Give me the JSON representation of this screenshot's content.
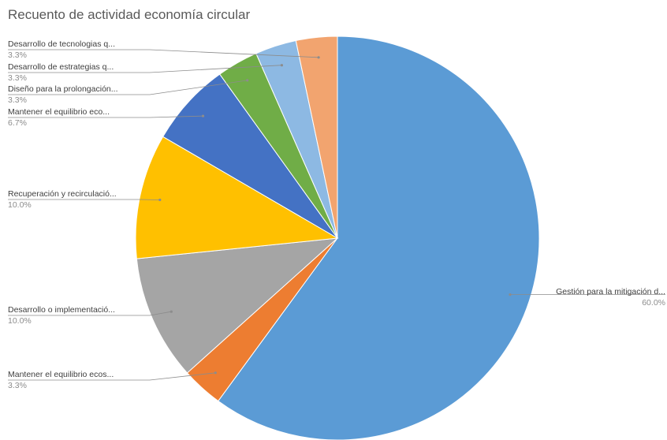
{
  "chart_data": {
    "type": "pie",
    "title": "Recuento de actividad economía circular",
    "slices": [
      {
        "label": "Gestión para la mitigación d...",
        "value": 60.0,
        "pct_label": "60.0%",
        "color": "#5b9bd5"
      },
      {
        "label": "Mantener el equilibrio ecos...",
        "value": 3.3,
        "pct_label": "3.3%",
        "color": "#ed7d31"
      },
      {
        "label": "Desarrollo o implementació...",
        "value": 10.0,
        "pct_label": "10.0%",
        "color": "#a5a5a5"
      },
      {
        "label": "Recuperación y recirculació...",
        "value": 10.0,
        "pct_label": "10.0%",
        "color": "#ffc000"
      },
      {
        "label": "Mantener el equilibrio eco...",
        "value": 6.7,
        "pct_label": "6.7%",
        "color": "#4472c4"
      },
      {
        "label": "Diseño para la prolongación...",
        "value": 3.3,
        "pct_label": "3.3%",
        "color": "#70ad47"
      },
      {
        "label": "Desarrollo de estrategias q...",
        "value": 3.3,
        "pct_label": "3.3%",
        "color": "#8db9e3"
      },
      {
        "label": "Desarrollo de tecnologias q...",
        "value": 3.3,
        "pct_label": "3.3%",
        "color": "#f2a46f"
      }
    ]
  }
}
